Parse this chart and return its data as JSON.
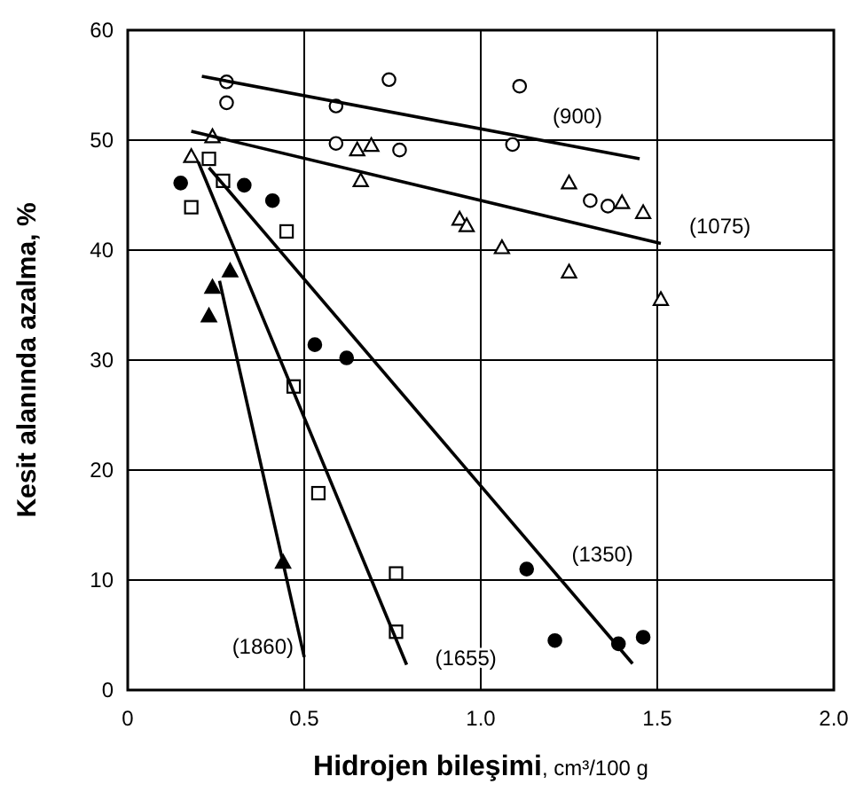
{
  "chart_data": {
    "type": "scatter",
    "xlabel": "Hidrojen bileşimi, cm³/100 g",
    "ylabel": "Kesit alanında azalma, %",
    "xlim": [
      0,
      2
    ],
    "ylim": [
      0,
      60
    ],
    "xticks": [
      0,
      0.5,
      {
        "value": 1,
        "label": "1.0"
      },
      1.5,
      {
        "value": 2,
        "label": "2.0"
      }
    ],
    "yticks": [
      0,
      10,
      20,
      30,
      40,
      50,
      60
    ],
    "grid": true,
    "series": [
      {
        "marker": "circle",
        "color": "#ffffff",
        "x": [
          0.28,
          0.28,
          0.59,
          0.74,
          1.11,
          0.59,
          0.77,
          1.09,
          1.31,
          1.36
        ],
        "values": [
          55.3,
          53.4,
          53.1,
          55.5,
          54.9,
          49.7,
          49.1,
          49.6,
          44.5,
          44
        ]
      },
      {
        "marker": "triangle",
        "color": "#ffffff",
        "x": [
          0.24,
          0.18,
          0.65,
          0.69,
          0.66,
          0.94,
          0.96,
          1.06,
          1.25,
          1.25,
          1.4,
          1.46,
          1.51
        ],
        "values": [
          50.3,
          48.5,
          49.1,
          49.5,
          46.3,
          42.8,
          42.2,
          40.2,
          46.1,
          38,
          44.3,
          43.4,
          35.5
        ]
      },
      {
        "marker": "square",
        "color": "#ffffff",
        "x": [
          0.23,
          0.27,
          0.18,
          0.45,
          0.47,
          0.54,
          0.76,
          0.76
        ],
        "values": [
          48.3,
          46.3,
          43.9,
          41.7,
          27.6,
          17.9,
          10.6,
          5.3
        ]
      },
      {
        "marker": "circle",
        "color": "#000000",
        "x": [
          0.15,
          0.33,
          0.41,
          0.53,
          0.62,
          1.13,
          1.21,
          1.39,
          1.46
        ],
        "values": [
          46.1,
          45.9,
          44.5,
          31.4,
          30.2,
          11,
          4.5,
          4.2,
          4.8
        ]
      },
      {
        "marker": "triangle",
        "color": "#000000",
        "x": [
          0.23,
          0.24,
          0.29,
          0.44
        ],
        "values": [
          34,
          36.6,
          38.1,
          11.6
        ]
      },
      {
        "type": "line",
        "name": "(900)",
        "marker": "none",
        "color": "#000000",
        "x": [
          0.21,
          1.45
        ],
        "values": [
          55.8,
          48.3
        ]
      },
      {
        "type": "line",
        "name": "(1075)",
        "marker": "none",
        "color": "#000000",
        "x": [
          0.18,
          1.51
        ],
        "values": [
          50.8,
          40.6
        ]
      },
      {
        "type": "line",
        "name": "(1350)",
        "marker": "none",
        "color": "#000000",
        "x": [
          0.23,
          1.43
        ],
        "values": [
          47.5,
          2.4
        ]
      },
      {
        "type": "line",
        "name": "(1655)",
        "marker": "none",
        "color": "#000000",
        "x": [
          0.2,
          0.79
        ],
        "values": [
          48,
          2.3
        ]
      },
      {
        "type": "line",
        "name": "(1860)",
        "marker": "none",
        "color": "#000000",
        "x": [
          0.26,
          0.5
        ],
        "values": [
          37.2,
          3
        ]
      }
    ]
  }
}
